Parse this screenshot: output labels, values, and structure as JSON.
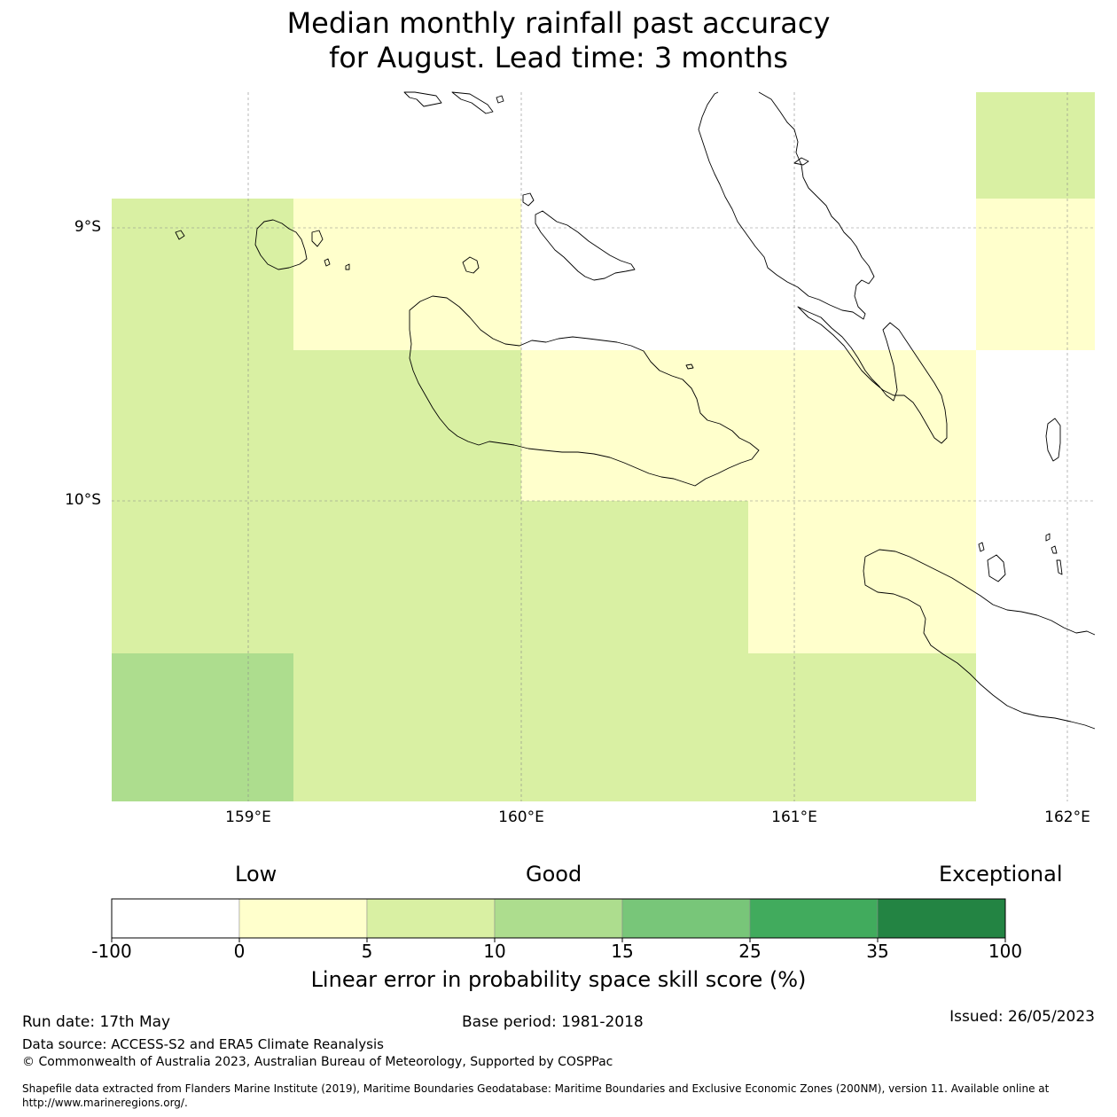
{
  "title": {
    "line1": "Median monthly rainfall past accuracy",
    "line2": "for August. Lead time: 3 months"
  },
  "map": {
    "lat_labels": [
      "9°S",
      "10°S"
    ],
    "lon_labels": [
      "159°E",
      "160°E",
      "161°E",
      "162°E"
    ],
    "extent": {
      "lon_min": 158.5,
      "lon_max": 162.1,
      "lat_min": -11.1,
      "lat_max": -8.5
    },
    "grid_cells": [
      {
        "lon": [
          161.67,
          162.1
        ],
        "lat": [
          -8.89,
          -8.5
        ],
        "skill_band": "5-10"
      },
      {
        "lon": [
          158.5,
          159.17
        ],
        "lat": [
          -9.44,
          -8.89
        ],
        "skill_band": "5-10"
      },
      {
        "lon": [
          159.17,
          160.0
        ],
        "lat": [
          -9.44,
          -8.89
        ],
        "skill_band": "0-5"
      },
      {
        "lon": [
          161.67,
          162.1
        ],
        "lat": [
          -9.44,
          -8.89
        ],
        "skill_band": "0-5"
      },
      {
        "lon": [
          158.5,
          160.0
        ],
        "lat": [
          -10.0,
          -9.44
        ],
        "skill_band": "5-10"
      },
      {
        "lon": [
          160.0,
          161.67
        ],
        "lat": [
          -10.0,
          -9.44
        ],
        "skill_band": "0-5"
      },
      {
        "lon": [
          158.5,
          160.83
        ],
        "lat": [
          -10.56,
          -10.0
        ],
        "skill_band": "5-10"
      },
      {
        "lon": [
          160.83,
          161.67
        ],
        "lat": [
          -10.56,
          -10.0
        ],
        "skill_band": "0-5"
      },
      {
        "lon": [
          158.5,
          159.17
        ],
        "lat": [
          -11.1,
          -10.56
        ],
        "skill_band": "10-15"
      },
      {
        "lon": [
          159.17,
          161.67
        ],
        "lat": [
          -11.1,
          -10.56
        ],
        "skill_band": "5-10"
      }
    ]
  },
  "legend": {
    "categories": [
      "Low",
      "Good",
      "Exceptional"
    ],
    "ticks": [
      "-100",
      "0",
      "5",
      "10",
      "15",
      "25",
      "35",
      "100"
    ],
    "colors": [
      "#ffffff",
      "#ffffcc",
      "#d9f0a3",
      "#addd8e",
      "#78c679",
      "#41ab5d",
      "#238443"
    ],
    "label": "Linear error in probability space skill score (%)"
  },
  "footer": {
    "run_date": "Run date: 17th May",
    "base_period": "Base period: 1981-2018",
    "issued": "Issued: 26/05/2023",
    "data_source": "Data source: ACCESS-S2 and ERA5 Climate Reanalysis",
    "copyright": "© Commonwealth of Australia 2023, Australian Bureau of Meteorology, Supported by COSPPac",
    "shapefile_line1": "Shapefile data extracted from Flanders Marine Institute (2019), Maritime Boundaries Geodatabase: Maritime Boundaries and Exclusive Economic Zones (200NM), version 11. Available online at",
    "shapefile_line2": "http://www.marineregions.org/."
  }
}
